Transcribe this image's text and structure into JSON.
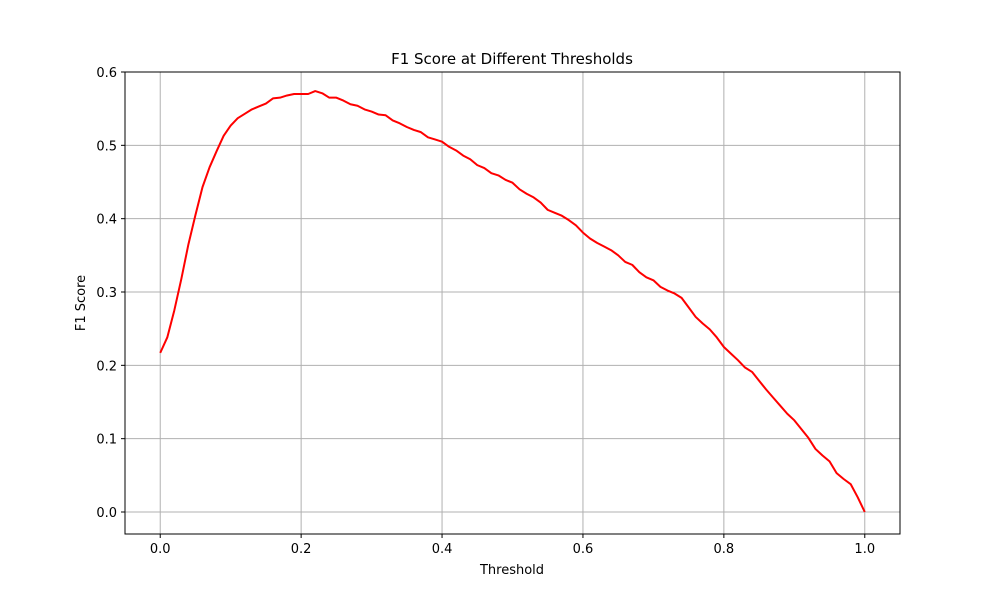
{
  "chart_data": {
    "type": "line",
    "title": "F1 Score at Different Thresholds",
    "xlabel": "Threshold",
    "ylabel": "F1 Score",
    "xlim": [
      -0.05,
      1.05
    ],
    "ylim": [
      -0.03,
      0.6
    ],
    "xticks": [
      0.0,
      0.2,
      0.4,
      0.6,
      0.8,
      1.0
    ],
    "xtick_labels": [
      "0.0",
      "0.2",
      "0.4",
      "0.6",
      "0.8",
      "1.0"
    ],
    "yticks": [
      0.0,
      0.1,
      0.2,
      0.3,
      0.4,
      0.5,
      0.6
    ],
    "ytick_labels": [
      "0.0",
      "0.1",
      "0.2",
      "0.3",
      "0.4",
      "0.5",
      "0.6"
    ],
    "grid": true,
    "line_color": "#ff0000",
    "grid_color": "#b0b0b0",
    "series": [
      {
        "x": [
          0.0,
          0.01,
          0.02,
          0.03,
          0.04,
          0.05,
          0.06,
          0.07,
          0.08,
          0.09,
          0.1,
          0.11,
          0.12,
          0.13,
          0.14,
          0.15,
          0.16,
          0.17,
          0.18,
          0.19,
          0.2,
          0.21,
          0.22,
          0.23,
          0.24,
          0.25,
          0.26,
          0.27,
          0.28,
          0.29,
          0.3,
          0.31,
          0.32,
          0.33,
          0.34,
          0.35,
          0.36,
          0.37,
          0.38,
          0.39,
          0.4,
          0.41,
          0.42,
          0.43,
          0.44,
          0.45,
          0.46,
          0.47,
          0.48,
          0.49,
          0.5,
          0.51,
          0.52,
          0.53,
          0.54,
          0.55,
          0.56,
          0.57,
          0.58,
          0.59,
          0.6,
          0.61,
          0.62,
          0.63,
          0.64,
          0.65,
          0.66,
          0.67,
          0.68,
          0.69,
          0.7,
          0.71,
          0.72,
          0.73,
          0.74,
          0.75,
          0.76,
          0.77,
          0.78,
          0.79,
          0.8,
          0.81,
          0.82,
          0.83,
          0.84,
          0.85,
          0.86,
          0.87,
          0.88,
          0.89,
          0.9,
          0.91,
          0.92,
          0.93,
          0.94,
          0.95,
          0.96,
          0.97,
          0.98,
          0.99,
          1.0
        ],
        "y": [
          0.217,
          0.238,
          0.275,
          0.318,
          0.365,
          0.405,
          0.443,
          0.47,
          0.492,
          0.513,
          0.527,
          0.537,
          0.543,
          0.549,
          0.553,
          0.557,
          0.564,
          0.565,
          0.568,
          0.57,
          0.57,
          0.57,
          0.574,
          0.571,
          0.565,
          0.565,
          0.561,
          0.556,
          0.554,
          0.549,
          0.546,
          0.542,
          0.541,
          0.534,
          0.53,
          0.525,
          0.521,
          0.518,
          0.511,
          0.508,
          0.505,
          0.498,
          0.493,
          0.486,
          0.481,
          0.473,
          0.469,
          0.462,
          0.459,
          0.453,
          0.449,
          0.44,
          0.434,
          0.429,
          0.422,
          0.412,
          0.408,
          0.404,
          0.398,
          0.391,
          0.381,
          0.373,
          0.367,
          0.362,
          0.357,
          0.35,
          0.341,
          0.337,
          0.327,
          0.32,
          0.316,
          0.307,
          0.302,
          0.298,
          0.292,
          0.279,
          0.266,
          0.257,
          0.249,
          0.238,
          0.225,
          0.216,
          0.207,
          0.197,
          0.191,
          0.179,
          0.167,
          0.156,
          0.145,
          0.134,
          0.125,
          0.113,
          0.101,
          0.086,
          0.077,
          0.069,
          0.053,
          0.045,
          0.038,
          0.02,
          0.0
        ]
      }
    ]
  }
}
